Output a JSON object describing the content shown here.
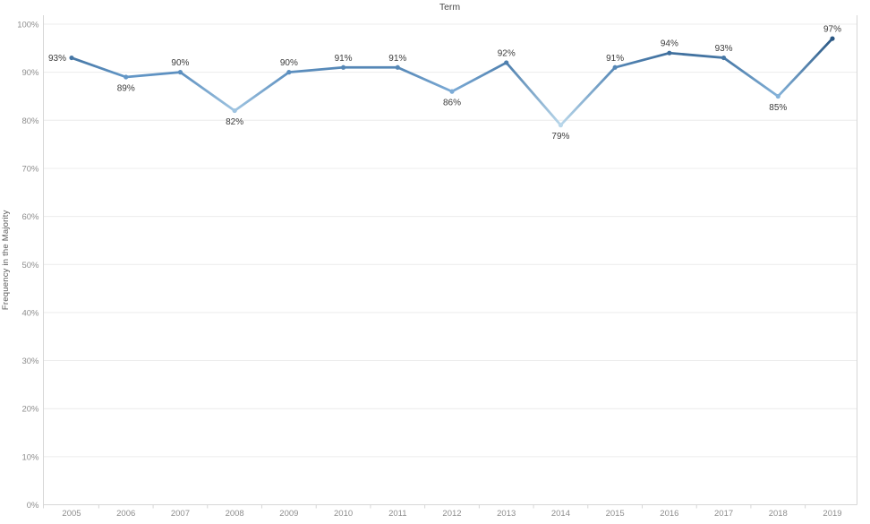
{
  "chart_data": {
    "type": "line",
    "title": "Term",
    "xlabel": "",
    "ylabel": "Frequency in the Majority",
    "categories": [
      "2005",
      "2006",
      "2007",
      "2008",
      "2009",
      "2010",
      "2011",
      "2012",
      "2013",
      "2014",
      "2015",
      "2016",
      "2017",
      "2018",
      "2019"
    ],
    "values": [
      93,
      89,
      90,
      82,
      90,
      91,
      91,
      86,
      92,
      79,
      91,
      94,
      93,
      85,
      97
    ],
    "point_labels": [
      "93%",
      "89%",
      "90%",
      "82%",
      "90%",
      "91%",
      "91%",
      "86%",
      "92%",
      "79%",
      "91%",
      "94%",
      "93%",
      "85%",
      "97%"
    ],
    "label_positions": [
      "left",
      "below",
      "above",
      "below",
      "above",
      "above",
      "above",
      "below",
      "above",
      "below",
      "above",
      "above",
      "above",
      "below",
      "above"
    ],
    "y_ticks": [
      "0%",
      "10%",
      "20%",
      "30%",
      "40%",
      "50%",
      "60%",
      "70%",
      "80%",
      "90%",
      "100%"
    ],
    "y_tick_values": [
      0,
      10,
      20,
      30,
      40,
      50,
      60,
      70,
      80,
      90,
      100
    ],
    "ylim": [
      0,
      100
    ],
    "grid": "horizontal",
    "legend": "none",
    "color_scale": {
      "note": "line/marker color encodes value, light-to-dark blue",
      "stops": [
        79,
        88,
        97
      ],
      "colors": [
        "#b9d7ea",
        "#6a9fd0",
        "#2a5783"
      ]
    },
    "colors": {
      "background": "#ffffff",
      "grid": "#ececec",
      "axis": "#d7d7d7",
      "tick_label": "#8e8e8e",
      "data_label": "#3b3b3b",
      "title": "#4a4a4a"
    }
  }
}
